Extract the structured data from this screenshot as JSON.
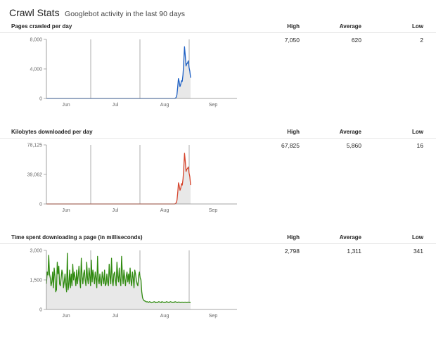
{
  "header": {
    "title": "Crawl Stats",
    "subtitle": "Googlebot activity in the last 90 days"
  },
  "columns": {
    "high": "High",
    "average": "Average",
    "low": "Low"
  },
  "sections": [
    {
      "title": "Pages crawled per day",
      "high": "7,050",
      "average": "620",
      "low": "2"
    },
    {
      "title": "Kilobytes downloaded per day",
      "high": "67,825",
      "average": "5,860",
      "low": "16"
    },
    {
      "title": "Time spent downloading a page (in milliseconds)",
      "high": "2,798",
      "average": "1,311",
      "low": "341"
    }
  ],
  "chart_data": [
    {
      "type": "area",
      "color": "#1c5fc4",
      "ylim": [
        0,
        8000
      ],
      "yticks": [
        "0",
        "4,000",
        "8,000"
      ],
      "ytick_values": [
        0,
        4000,
        8000
      ],
      "xticks": [
        "Jun",
        "Jul",
        "Aug",
        "Sep"
      ],
      "values": [
        0,
        0,
        0,
        0,
        0,
        0,
        0,
        0,
        0,
        0,
        0,
        0,
        0,
        0,
        0,
        0,
        0,
        0,
        0,
        0,
        0,
        0,
        0,
        0,
        0,
        0,
        0,
        0,
        0,
        0,
        0,
        0,
        0,
        0,
        0,
        0,
        0,
        0,
        0,
        0,
        0,
        0,
        0,
        0,
        0,
        0,
        0,
        0,
        0,
        0,
        0,
        0,
        0,
        0,
        0,
        0,
        0,
        0,
        0,
        0,
        0,
        0,
        0,
        0,
        0,
        0,
        0,
        0,
        0,
        0,
        0,
        0,
        0,
        0,
        0,
        0,
        0,
        0,
        0,
        0,
        0,
        0,
        0,
        0,
        0,
        0,
        0,
        0,
        0,
        0,
        0,
        0,
        0,
        0,
        0,
        0,
        0,
        0,
        0,
        0,
        0,
        0,
        0,
        0,
        0,
        0,
        0,
        0,
        0,
        0,
        0,
        0,
        0,
        0,
        0,
        0,
        0,
        0,
        0,
        0,
        0,
        0,
        0,
        0,
        0,
        0,
        0,
        0,
        0,
        0,
        0,
        0,
        0,
        0,
        0,
        0,
        0,
        0,
        0,
        0,
        0,
        0,
        0,
        0,
        0,
        0,
        0,
        0,
        0,
        0,
        0,
        0,
        0,
        0,
        0,
        0,
        0,
        0,
        0,
        0,
        0,
        0,
        0,
        0,
        0,
        0,
        0,
        0,
        0,
        0,
        50,
        150,
        500,
        1500,
        2700,
        2300,
        1600,
        1900,
        2400,
        2300,
        3200,
        4900,
        7000,
        5800,
        4400,
        4700,
        4800,
        5100,
        4200,
        3700,
        2800
      ]
    },
    {
      "type": "area",
      "color": "#d6432b",
      "ylim": [
        0,
        78125
      ],
      "yticks": [
        "0",
        "39,062",
        "78,125"
      ],
      "ytick_values": [
        0,
        39062,
        78125
      ],
      "xticks": [
        "Jun",
        "Jul",
        "Aug",
        "Sep"
      ],
      "values": [
        0,
        0,
        0,
        0,
        0,
        0,
        0,
        0,
        0,
        0,
        0,
        0,
        0,
        0,
        0,
        0,
        0,
        0,
        0,
        0,
        0,
        0,
        0,
        0,
        0,
        0,
        0,
        0,
        0,
        0,
        0,
        0,
        0,
        0,
        0,
        0,
        0,
        0,
        0,
        0,
        0,
        0,
        0,
        0,
        0,
        0,
        0,
        0,
        0,
        0,
        0,
        0,
        0,
        0,
        0,
        0,
        0,
        0,
        0,
        0,
        0,
        0,
        0,
        0,
        0,
        0,
        0,
        0,
        0,
        0,
        0,
        0,
        0,
        0,
        0,
        0,
        0,
        0,
        0,
        0,
        0,
        0,
        0,
        0,
        0,
        0,
        0,
        0,
        0,
        0,
        0,
        0,
        0,
        0,
        0,
        0,
        0,
        0,
        0,
        0,
        0,
        0,
        0,
        0,
        0,
        0,
        0,
        0,
        0,
        0,
        0,
        0,
        0,
        0,
        0,
        0,
        0,
        0,
        0,
        0,
        0,
        0,
        0,
        0,
        0,
        0,
        0,
        0,
        0,
        0,
        0,
        0,
        0,
        0,
        0,
        0,
        0,
        0,
        0,
        0,
        0,
        0,
        0,
        0,
        0,
        0,
        0,
        0,
        0,
        0,
        0,
        0,
        0,
        0,
        0,
        0,
        0,
        0,
        0,
        0,
        0,
        0,
        0,
        0,
        0,
        0,
        0,
        0,
        0,
        0,
        0,
        500,
        1500,
        5000,
        15000,
        28000,
        24000,
        18000,
        21000,
        27000,
        25000,
        33000,
        48000,
        67000,
        56000,
        43000,
        46000,
        47000,
        49000,
        41000,
        36000,
        25000
      ]
    },
    {
      "type": "area",
      "color": "#2f8a0f",
      "ylim": [
        0,
        3000
      ],
      "yticks": [
        "0",
        "1,500",
        "3,000"
      ],
      "ytick_values": [
        0,
        1500,
        3000
      ],
      "xticks": [
        "Jun",
        "Jul",
        "Aug",
        "Sep"
      ],
      "values": [
        1300,
        1900,
        1750,
        2750,
        1800,
        1600,
        1200,
        1400,
        1900,
        1100,
        2100,
        1700,
        900,
        1000,
        2400,
        1800,
        2200,
        1300,
        1200,
        1600,
        2000,
        1800,
        1100,
        1400,
        1800,
        1300,
        900,
        2850,
        1000,
        1300,
        2000,
        1100,
        1800,
        1200,
        2300,
        1500,
        1900,
        1600,
        1200,
        2000,
        1300,
        1700,
        2200,
        1500,
        1100,
        2600,
        1700,
        1300,
        1800,
        2000,
        1500,
        1200,
        2400,
        1600,
        1300,
        2100,
        1700,
        1200,
        2500,
        1400,
        2000,
        1700,
        1300,
        1900,
        1600,
        1100,
        2700,
        1500,
        1300,
        1800,
        1400,
        1200,
        1900,
        1600,
        1300,
        2000,
        1200,
        1300,
        1800,
        1400,
        1200,
        2300,
        1700,
        1300,
        2600,
        1500,
        1200,
        1800,
        1900,
        1500,
        1200,
        2400,
        1700,
        1400,
        2100,
        1500,
        1200,
        2700,
        1800,
        1300,
        2000,
        1600,
        1200,
        1700,
        1900,
        1400,
        1800,
        1300,
        2100,
        1500,
        1200,
        1900,
        1600,
        1100,
        2000,
        1800,
        1500,
        1300,
        1200,
        1700,
        1900,
        1600,
        1500,
        900,
        600,
        500,
        450,
        430,
        420,
        380,
        400,
        370,
        360,
        400,
        380,
        350,
        340,
        360,
        370,
        400,
        380,
        340,
        360,
        350,
        370,
        400,
        380,
        360,
        350,
        400,
        380,
        360,
        350,
        370,
        360,
        400,
        380,
        360,
        350,
        370,
        400,
        380,
        360,
        350,
        370,
        360,
        400,
        380,
        360,
        350,
        370,
        380,
        360,
        350,
        360,
        370,
        360,
        350,
        360,
        370,
        360,
        350,
        360,
        370,
        360,
        350,
        360
      ]
    }
  ]
}
